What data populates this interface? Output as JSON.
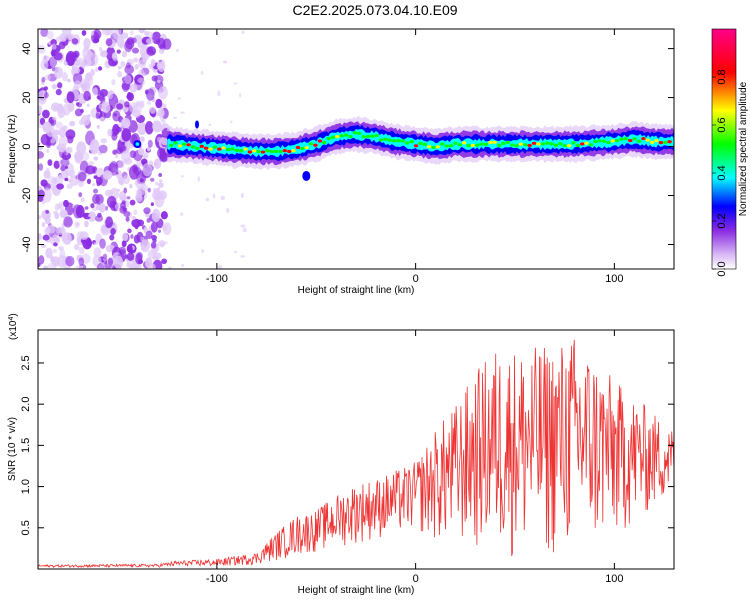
{
  "title": "C2E2.2025.073.04.10.E09",
  "chart_data": [
    {
      "type": "heatmap",
      "xlabel": "Height of straight line (km)",
      "ylabel": "Frequency (Hz)",
      "xlim": [
        -190,
        130
      ],
      "ylim": [
        -50,
        48
      ],
      "xticks": [
        -100,
        0,
        100
      ],
      "xtick_labels": [
        "-100",
        "0",
        "100"
      ],
      "yticks": [
        -40,
        -20,
        0,
        20,
        40
      ],
      "ytick_labels": [
        "-40",
        "-20",
        "0",
        "20",
        "40"
      ],
      "noise_region_end_km": -125,
      "center_line": {
        "x": [
          -125,
          -110,
          -95,
          -80,
          -70,
          -60,
          -50,
          -40,
          -30,
          -20,
          -10,
          0,
          10,
          20,
          40,
          60,
          80,
          100,
          110,
          120,
          130
        ],
        "y": [
          1,
          0,
          -1,
          -2,
          -2,
          -1,
          1,
          4,
          5,
          4,
          2,
          1,
          0,
          1,
          1,
          1,
          1,
          2,
          3,
          2,
          2
        ]
      },
      "colorbar": {
        "label": "Normalized spectral amplitude",
        "range": [
          0,
          1
        ],
        "ticks": [
          0.0,
          0.2,
          0.4,
          0.6,
          0.8
        ],
        "tick_labels": [
          "0.0",
          "0.2",
          "0.4",
          "0.6",
          "0.8"
        ]
      },
      "colors": {
        "palette": [
          "#ffffff",
          "#e0c8f8",
          "#8a2be2",
          "#0000ff",
          "#00ffff",
          "#00ff00",
          "#ffff00",
          "#ff0000",
          "#ff00aa"
        ]
      }
    },
    {
      "type": "line",
      "xlabel": "Height of straight line (km)",
      "ylabel": "SNR (10 * v/v)",
      "scale_label": "(x10",
      "scale_exp": "4",
      "scale_close": ")",
      "xlim": [
        -190,
        130
      ],
      "ylim": [
        0,
        2.9
      ],
      "xticks": [
        -100,
        0,
        100
      ],
      "xtick_labels": [
        "-100",
        "0",
        "100"
      ],
      "yticks": [
        0.5,
        1.0,
        1.5,
        2.0,
        2.5
      ],
      "ytick_labels": [
        "0.5",
        "1.0",
        "1.5",
        "2.0",
        "2.5"
      ],
      "envelope": {
        "x": [
          -190,
          -130,
          -120,
          -100,
          -80,
          -70,
          -60,
          -50,
          -40,
          -30,
          -20,
          -10,
          0,
          10,
          20,
          30,
          40,
          50,
          60,
          70,
          80,
          90,
          100,
          110,
          120,
          130
        ],
        "upper": [
          0.05,
          0.06,
          0.1,
          0.12,
          0.2,
          0.45,
          0.65,
          0.72,
          0.9,
          1.05,
          1.1,
          1.2,
          1.3,
          1.7,
          2.0,
          2.4,
          2.7,
          2.7,
          2.7,
          2.75,
          2.85,
          2.6,
          2.3,
          2.1,
          1.9,
          1.7
        ],
        "lower": [
          0.02,
          0.02,
          0.03,
          0.03,
          0.05,
          0.1,
          0.15,
          0.2,
          0.25,
          0.3,
          0.35,
          0.4,
          0.45,
          0.3,
          0.25,
          0.2,
          0.15,
          0.1,
          0.1,
          0.1,
          0.15,
          0.2,
          0.3,
          0.5,
          0.7,
          0.9
        ]
      },
      "series_color": "#ee3333"
    }
  ]
}
